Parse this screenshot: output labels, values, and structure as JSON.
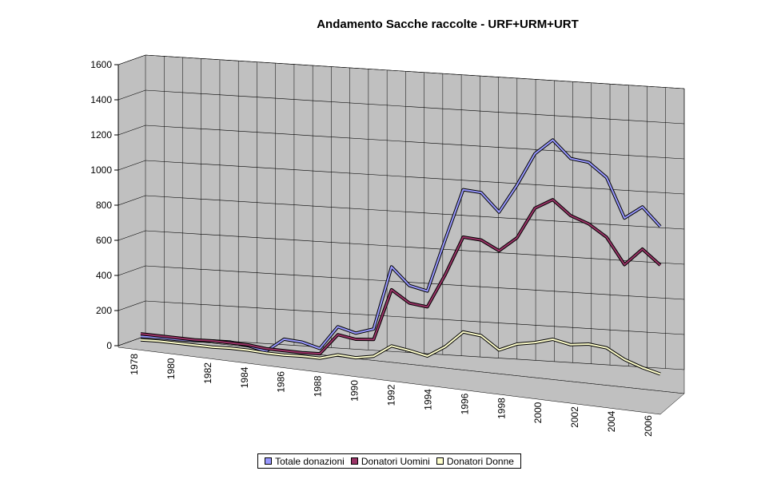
{
  "chart_data": {
    "type": "line",
    "title": "Andamento Sacche raccolte  -  URF+URM+URT",
    "y_ticks": [
      "0",
      "200",
      "400",
      "600",
      "800",
      "1000",
      "1200",
      "1400",
      "1600"
    ],
    "ylim": [
      0,
      1600
    ],
    "x_tick_labels": [
      "1978",
      "1980",
      "1982",
      "1984",
      "1986",
      "1988",
      "1990",
      "1992",
      "1994",
      "1996",
      "1998",
      "2000",
      "2002",
      "2004",
      "2006"
    ],
    "x": [
      1978,
      1979,
      1980,
      1981,
      1982,
      1983,
      1984,
      1985,
      1986,
      1987,
      1988,
      1989,
      1990,
      1991,
      1992,
      1993,
      1994,
      1995,
      1996,
      1997,
      1998,
      1999,
      2000,
      2001,
      2002,
      2003,
      2004,
      2005,
      2006,
      2007
    ],
    "grid": true,
    "legend_position": "bottom",
    "series": [
      {
        "name": "Totale donazioni",
        "color": "#9999ff",
        "values": [
          60,
          60,
          55,
          55,
          60,
          60,
          45,
          20,
          95,
          85,
          55,
          185,
          155,
          185,
          545,
          445,
          420,
          720,
          1010,
          1000,
          895,
          1055,
          1240,
          1325,
          1225,
          1210,
          1130,
          905,
          975,
          870
        ]
      },
      {
        "name": "Donatori Uomini",
        "color": "#993366",
        "values": [
          75,
          70,
          65,
          60,
          60,
          55,
          50,
          35,
          30,
          25,
          25,
          140,
          120,
          125,
          415,
          345,
          330,
          520,
          740,
          730,
          675,
          755,
          930,
          985,
          900,
          860,
          790,
          640,
          735,
          650
        ]
      },
      {
        "name": "Donatori Donne",
        "color": "#ffffcc",
        "values": [
          40,
          40,
          35,
          30,
          25,
          25,
          20,
          10,
          5,
          5,
          0,
          25,
          15,
          30,
          95,
          75,
          50,
          110,
          200,
          185,
          110,
          150,
          165,
          190,
          165,
          175,
          160,
          100,
          60,
          30
        ]
      }
    ]
  }
}
